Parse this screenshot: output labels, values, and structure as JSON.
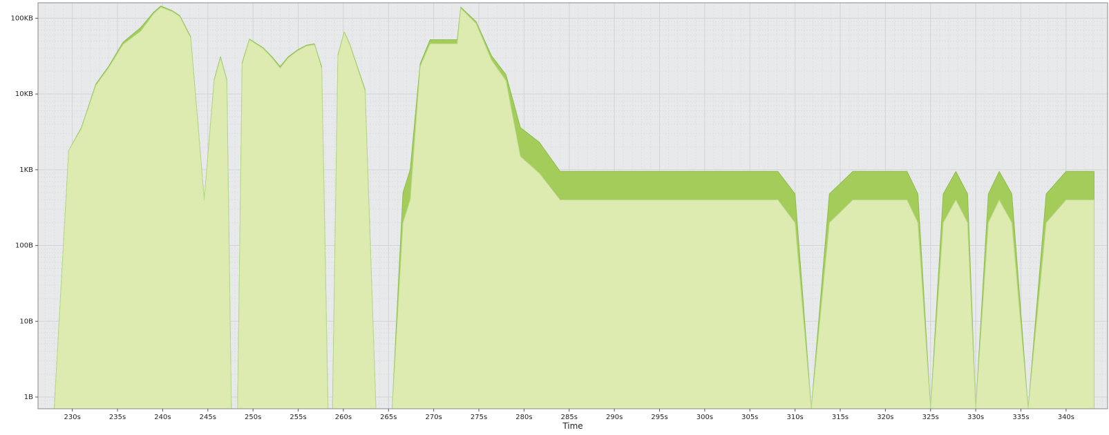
{
  "chart_data": {
    "type": "area",
    "stacked": true,
    "xlabel": "Time",
    "ylabel": "",
    "title": "",
    "y_scale": "log",
    "y_units": "bytes",
    "xlim": [
      226.2,
      344.6
    ],
    "ylim": [
      0.7,
      160000
    ],
    "x_ticks": [
      230,
      235,
      240,
      245,
      250,
      255,
      260,
      265,
      270,
      275,
      280,
      285,
      290,
      295,
      300,
      305,
      310,
      315,
      320,
      325,
      330,
      335,
      340
    ],
    "x_tick_labels": [
      "230s",
      "235s",
      "240s",
      "245s",
      "250s",
      "255s",
      "260s",
      "265s",
      "270s",
      "275s",
      "280s",
      "285s",
      "290s",
      "295s",
      "300s",
      "305s",
      "310s",
      "315s",
      "320s",
      "325s",
      "330s",
      "335s",
      "340s"
    ],
    "y_ticks": [
      1,
      10,
      100,
      1000,
      10000,
      100000
    ],
    "y_tick_labels": [
      "1B",
      "10B",
      "100B",
      "1KB",
      "10KB",
      "100KB"
    ],
    "grid": true,
    "colors": {
      "plot_background": "#e8e9eb",
      "lower_fill": "#ddebb0",
      "upper_fill": "#a3cc5b",
      "edge": "#8ebf48"
    },
    "series": [
      {
        "fill": "#ddebb0",
        "x": [
          228.0,
          229.6,
          231.0,
          232.6,
          234.0,
          235.6,
          237.6,
          239.0,
          239.8,
          241.1,
          241.9,
          243.1,
          244.6,
          245.7,
          246.4,
          247.1,
          247.6,
          248.3,
          248.8,
          249.6,
          251.1,
          252.1,
          253.0,
          253.9,
          254.9,
          255.9,
          256.8,
          257.6,
          258.3,
          258.8,
          259.4,
          260.1,
          260.7,
          262.4,
          263.6,
          265.4,
          266.6,
          267.4,
          268.5,
          269.6,
          272.6,
          273.0,
          274.7,
          276.4,
          278.0,
          279.6,
          281.7,
          284.0,
          308.1,
          310.0,
          311.8,
          313.8,
          316.4,
          322.4,
          323.6,
          325.0,
          326.4,
          327.8,
          329.1,
          330.0,
          331.4,
          332.6,
          334.0,
          335.8,
          337.8,
          340.0,
          343.1
        ],
        "values": [
          0.7,
          1800,
          3500,
          13000,
          22000,
          45000,
          68000,
          115000,
          140000,
          122000,
          105000,
          55000,
          400,
          15000,
          30000,
          15000,
          0.7,
          0.7,
          25000,
          52000,
          40000,
          30000,
          22000,
          30000,
          37000,
          43000,
          45000,
          22000,
          0.7,
          0.7,
          32000,
          65000,
          45000,
          11000,
          0.7,
          0.7,
          200,
          400,
          23000,
          46000,
          46000,
          135000,
          85000,
          28000,
          15000,
          1500,
          900,
          400,
          400,
          200,
          0.7,
          200,
          400,
          400,
          200,
          0.7,
          200,
          400,
          200,
          0.7,
          200,
          400,
          200,
          0.7,
          200,
          400,
          400
        ]
      },
      {
        "fill": "#a3cc5b",
        "x": [
          228.0,
          229.6,
          231.0,
          232.6,
          234.0,
          235.6,
          237.6,
          239.0,
          239.8,
          241.1,
          241.9,
          243.1,
          244.6,
          245.7,
          246.4,
          247.1,
          247.6,
          248.3,
          248.8,
          249.6,
          251.1,
          252.1,
          253.0,
          253.9,
          254.9,
          255.9,
          256.8,
          257.6,
          258.3,
          258.8,
          259.4,
          260.1,
          260.7,
          262.4,
          263.6,
          265.4,
          266.6,
          267.4,
          268.5,
          269.6,
          272.6,
          273.0,
          274.7,
          276.4,
          278.0,
          279.6,
          281.7,
          284.0,
          308.1,
          310.0,
          311.8,
          313.8,
          316.4,
          322.4,
          323.6,
          325.0,
          326.4,
          327.8,
          329.1,
          330.0,
          331.4,
          332.6,
          334.0,
          335.8,
          337.8,
          340.0,
          343.1
        ],
        "values": [
          0.7,
          1800,
          3600,
          13500,
          23000,
          48000,
          76000,
          120000,
          145000,
          125000,
          108000,
          57000,
          400,
          15500,
          31000,
          15500,
          0.7,
          0.7,
          26000,
          53000,
          41000,
          31000,
          23000,
          31000,
          38000,
          44000,
          46000,
          23000,
          0.7,
          0.7,
          33000,
          66000,
          46000,
          11500,
          0.7,
          0.7,
          500,
          1000,
          25000,
          52000,
          52000,
          140000,
          90000,
          32000,
          18000,
          3600,
          2300,
          950,
          950,
          480,
          0.7,
          480,
          950,
          950,
          480,
          0.7,
          480,
          950,
          480,
          0.7,
          480,
          950,
          480,
          0.7,
          480,
          950,
          950
        ]
      }
    ]
  }
}
